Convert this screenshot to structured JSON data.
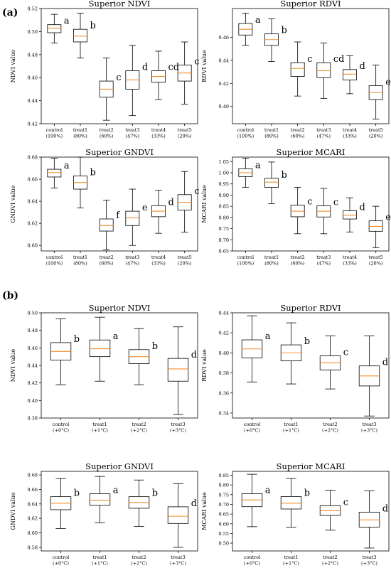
{
  "panel_labels": [
    "(a)",
    "(b)"
  ],
  "chart_data": [
    {
      "type": "box",
      "panel": "a",
      "title": "Superior NDVI",
      "ylabel": "NDVI value",
      "ylim": [
        0.42,
        0.52
      ],
      "yticks": [
        "0.42",
        "0.44",
        "0.46",
        "0.48",
        "0.50",
        "0.52"
      ],
      "grid": false,
      "categories": [
        "control\n(100%)",
        "treat1\n(80%)",
        "treat2\n(60%)",
        "treat3\n(47%)",
        "treat4\n(33%)",
        "treat5\n(20%)"
      ],
      "boxes": [
        {
          "min": 0.49,
          "q1": 0.499,
          "median": 0.503,
          "q3": 0.506,
          "max": 0.515,
          "letter": "a"
        },
        {
          "min": 0.477,
          "q1": 0.491,
          "median": 0.496,
          "q3": 0.502,
          "max": 0.516,
          "letter": "b"
        },
        {
          "min": 0.423,
          "q1": 0.443,
          "median": 0.45,
          "q3": 0.457,
          "max": 0.477,
          "letter": "c"
        },
        {
          "min": 0.427,
          "q1": 0.45,
          "median": 0.458,
          "q3": 0.466,
          "max": 0.488,
          "letter": "d"
        },
        {
          "min": 0.441,
          "q1": 0.456,
          "median": 0.461,
          "q3": 0.466,
          "max": 0.483,
          "letter": "cd"
        },
        {
          "min": 0.437,
          "q1": 0.457,
          "median": 0.464,
          "q3": 0.471,
          "max": 0.491,
          "letter": "c"
        }
      ]
    },
    {
      "type": "box",
      "panel": "a",
      "title": "Superior RDVI",
      "ylabel": "RDVI value",
      "ylim": [
        0.385,
        0.485
      ],
      "yticks": [
        "0.40",
        "0.42",
        "0.44",
        "0.46"
      ],
      "grid": false,
      "categories": [
        "control\n(100%)",
        "treat1\n(80%)",
        "treat2\n(60%)",
        "treat3\n(47%)",
        "treat4\n(33%)",
        "treat5\n(20%)"
      ],
      "boxes": [
        {
          "min": 0.453,
          "q1": 0.462,
          "median": 0.467,
          "q3": 0.472,
          "max": 0.481,
          "letter": "a"
        },
        {
          "min": 0.439,
          "q1": 0.453,
          "median": 0.458,
          "q3": 0.463,
          "max": 0.476,
          "letter": "b"
        },
        {
          "min": 0.409,
          "q1": 0.426,
          "median": 0.433,
          "q3": 0.438,
          "max": 0.456,
          "letter": "c"
        },
        {
          "min": 0.407,
          "q1": 0.425,
          "median": 0.431,
          "q3": 0.438,
          "max": 0.455,
          "letter": "cd"
        },
        {
          "min": 0.411,
          "q1": 0.423,
          "median": 0.428,
          "q3": 0.432,
          "max": 0.444,
          "letter": "d"
        },
        {
          "min": 0.389,
          "q1": 0.406,
          "median": 0.412,
          "q3": 0.418,
          "max": 0.436,
          "letter": "e"
        }
      ]
    },
    {
      "type": "box",
      "panel": "a",
      "title": "Superior GNDVI",
      "ylabel": "GNDVI value",
      "ylim": [
        0.595,
        0.68
      ],
      "yticks": [
        "0.60",
        "0.62",
        "0.64",
        "0.66",
        "0.68"
      ],
      "grid": false,
      "categories": [
        "control\n(100%)",
        "treat1\n(80%)",
        "treat2\n(60%)",
        "treat3\n(47%)",
        "treat4\n(33%)",
        "treat5\n(20%)"
      ],
      "boxes": [
        {
          "min": 0.652,
          "q1": 0.662,
          "median": 0.666,
          "q3": 0.669,
          "max": 0.679,
          "letter": "a"
        },
        {
          "min": 0.634,
          "q1": 0.651,
          "median": 0.657,
          "q3": 0.663,
          "max": 0.68,
          "letter": "b"
        },
        {
          "min": 0.596,
          "q1": 0.613,
          "median": 0.618,
          "q3": 0.624,
          "max": 0.641,
          "letter": "f"
        },
        {
          "min": 0.6,
          "q1": 0.618,
          "median": 0.625,
          "q3": 0.631,
          "max": 0.651,
          "letter": "e"
        },
        {
          "min": 0.611,
          "q1": 0.626,
          "median": 0.631,
          "q3": 0.636,
          "max": 0.65,
          "letter": "d"
        },
        {
          "min": 0.612,
          "q1": 0.632,
          "median": 0.639,
          "q3": 0.646,
          "max": 0.667,
          "letter": "c"
        }
      ]
    },
    {
      "type": "box",
      "panel": "a",
      "title": "Superior MCARI",
      "ylabel": "MCARI value",
      "ylim": [
        0.65,
        1.07
      ],
      "yticks": [
        "0.65",
        "0.70",
        "0.75",
        "0.80",
        "0.85",
        "0.90",
        "0.95",
        "1.00",
        "1.05"
      ],
      "grid": false,
      "categories": [
        "control\n(100%)",
        "treat1\n(80%)",
        "treat2\n(60%)",
        "treat3\n(47%)",
        "treat4\n(33%)",
        "treat5\n(20%)"
      ],
      "boxes": [
        {
          "min": 0.935,
          "q1": 0.983,
          "median": 1.0,
          "q3": 1.018,
          "max": 1.065,
          "letter": "a"
        },
        {
          "min": 0.862,
          "q1": 0.935,
          "median": 0.958,
          "q3": 0.975,
          "max": 1.048,
          "letter": "b"
        },
        {
          "min": 0.727,
          "q1": 0.803,
          "median": 0.828,
          "q3": 0.855,
          "max": 0.935,
          "letter": "c"
        },
        {
          "min": 0.727,
          "q1": 0.802,
          "median": 0.828,
          "q3": 0.852,
          "max": 0.93,
          "letter": "c"
        },
        {
          "min": 0.735,
          "q1": 0.793,
          "median": 0.81,
          "q3": 0.83,
          "max": 0.888,
          "letter": "d"
        },
        {
          "min": 0.665,
          "q1": 0.738,
          "median": 0.76,
          "q3": 0.785,
          "max": 0.85,
          "letter": "e"
        }
      ]
    },
    {
      "type": "box",
      "panel": "b",
      "title": "Superior NDVI",
      "ylabel": "NDVI value",
      "ylim": [
        0.38,
        0.5
      ],
      "yticks": [
        "0.38",
        "0.40",
        "0.42",
        "0.44",
        "0.46",
        "0.48",
        "0.50"
      ],
      "grid": false,
      "categories": [
        "control\n(+0°C)",
        "treat1\n(+1°C)",
        "treat2\n(+2°C)",
        "treat3\n(+3°C)"
      ],
      "boxes": [
        {
          "min": 0.418,
          "q1": 0.446,
          "median": 0.456,
          "q3": 0.466,
          "max": 0.493,
          "letter": "b"
        },
        {
          "min": 0.422,
          "q1": 0.45,
          "median": 0.459,
          "q3": 0.469,
          "max": 0.495,
          "letter": "a"
        },
        {
          "min": 0.418,
          "q1": 0.442,
          "median": 0.45,
          "q3": 0.458,
          "max": 0.482,
          "letter": "b"
        },
        {
          "min": 0.384,
          "q1": 0.422,
          "median": 0.436,
          "q3": 0.448,
          "max": 0.484,
          "letter": "d"
        }
      ]
    },
    {
      "type": "box",
      "panel": "b",
      "title": "Superior RDVI",
      "ylabel": "RDVI value",
      "ylim": [
        0.335,
        0.44
      ],
      "yticks": [
        "0.34",
        "0.36",
        "0.38",
        "0.40",
        "0.42",
        "0.44"
      ],
      "grid": false,
      "categories": [
        "control\n(+0°C)",
        "treat1\n(+1°C)",
        "treat2\n(+2°C)",
        "treat3\n(+3°C)"
      ],
      "boxes": [
        {
          "min": 0.371,
          "q1": 0.395,
          "median": 0.404,
          "q3": 0.413,
          "max": 0.437,
          "letter": "a"
        },
        {
          "min": 0.369,
          "q1": 0.392,
          "median": 0.4,
          "q3": 0.408,
          "max": 0.43,
          "letter": "b"
        },
        {
          "min": 0.364,
          "q1": 0.383,
          "median": 0.39,
          "q3": 0.397,
          "max": 0.417,
          "letter": "c"
        },
        {
          "min": 0.337,
          "q1": 0.367,
          "median": 0.377,
          "q3": 0.387,
          "max": 0.417,
          "letter": "d"
        }
      ]
    },
    {
      "type": "box",
      "panel": "b",
      "title": "Superior GNDVI",
      "ylabel": "GNDVI value",
      "ylim": [
        0.575,
        0.685
      ],
      "yticks": [
        "0.58",
        "0.60",
        "0.62",
        "0.64",
        "0.66",
        "0.68"
      ],
      "grid": false,
      "categories": [
        "control\n(+0°C)",
        "treat1\n(+1°C)",
        "treat2\n(+2°C)",
        "treat3\n(+3°C)"
      ],
      "boxes": [
        {
          "min": 0.606,
          "q1": 0.632,
          "median": 0.641,
          "q3": 0.65,
          "max": 0.675,
          "letter": "b"
        },
        {
          "min": 0.614,
          "q1": 0.638,
          "median": 0.645,
          "q3": 0.654,
          "max": 0.678,
          "letter": "a"
        },
        {
          "min": 0.609,
          "q1": 0.634,
          "median": 0.642,
          "q3": 0.65,
          "max": 0.673,
          "letter": "b"
        },
        {
          "min": 0.58,
          "q1": 0.613,
          "median": 0.623,
          "q3": 0.636,
          "max": 0.668,
          "letter": "d"
        }
      ]
    },
    {
      "type": "box",
      "panel": "b",
      "title": "Superior MCARI",
      "ylabel": "MCARI value",
      "ylim": [
        0.46,
        0.87
      ],
      "yticks": [
        "0.50",
        "0.55",
        "0.60",
        "0.65",
        "0.70",
        "0.75",
        "0.80",
        "0.85"
      ],
      "grid": false,
      "categories": [
        "control\n(+0°C)",
        "treat1\n(+1°C)",
        "treat2\n(+2°C)",
        "treat3\n(+3°C)"
      ],
      "boxes": [
        {
          "min": 0.585,
          "q1": 0.688,
          "median": 0.723,
          "q3": 0.755,
          "max": 0.855,
          "letter": "a"
        },
        {
          "min": 0.583,
          "q1": 0.676,
          "median": 0.706,
          "q3": 0.74,
          "max": 0.833,
          "letter": "b"
        },
        {
          "min": 0.567,
          "q1": 0.643,
          "median": 0.667,
          "q3": 0.693,
          "max": 0.773,
          "letter": "c"
        },
        {
          "min": 0.475,
          "q1": 0.583,
          "median": 0.62,
          "q3": 0.66,
          "max": 0.77,
          "letter": "d"
        }
      ]
    }
  ]
}
